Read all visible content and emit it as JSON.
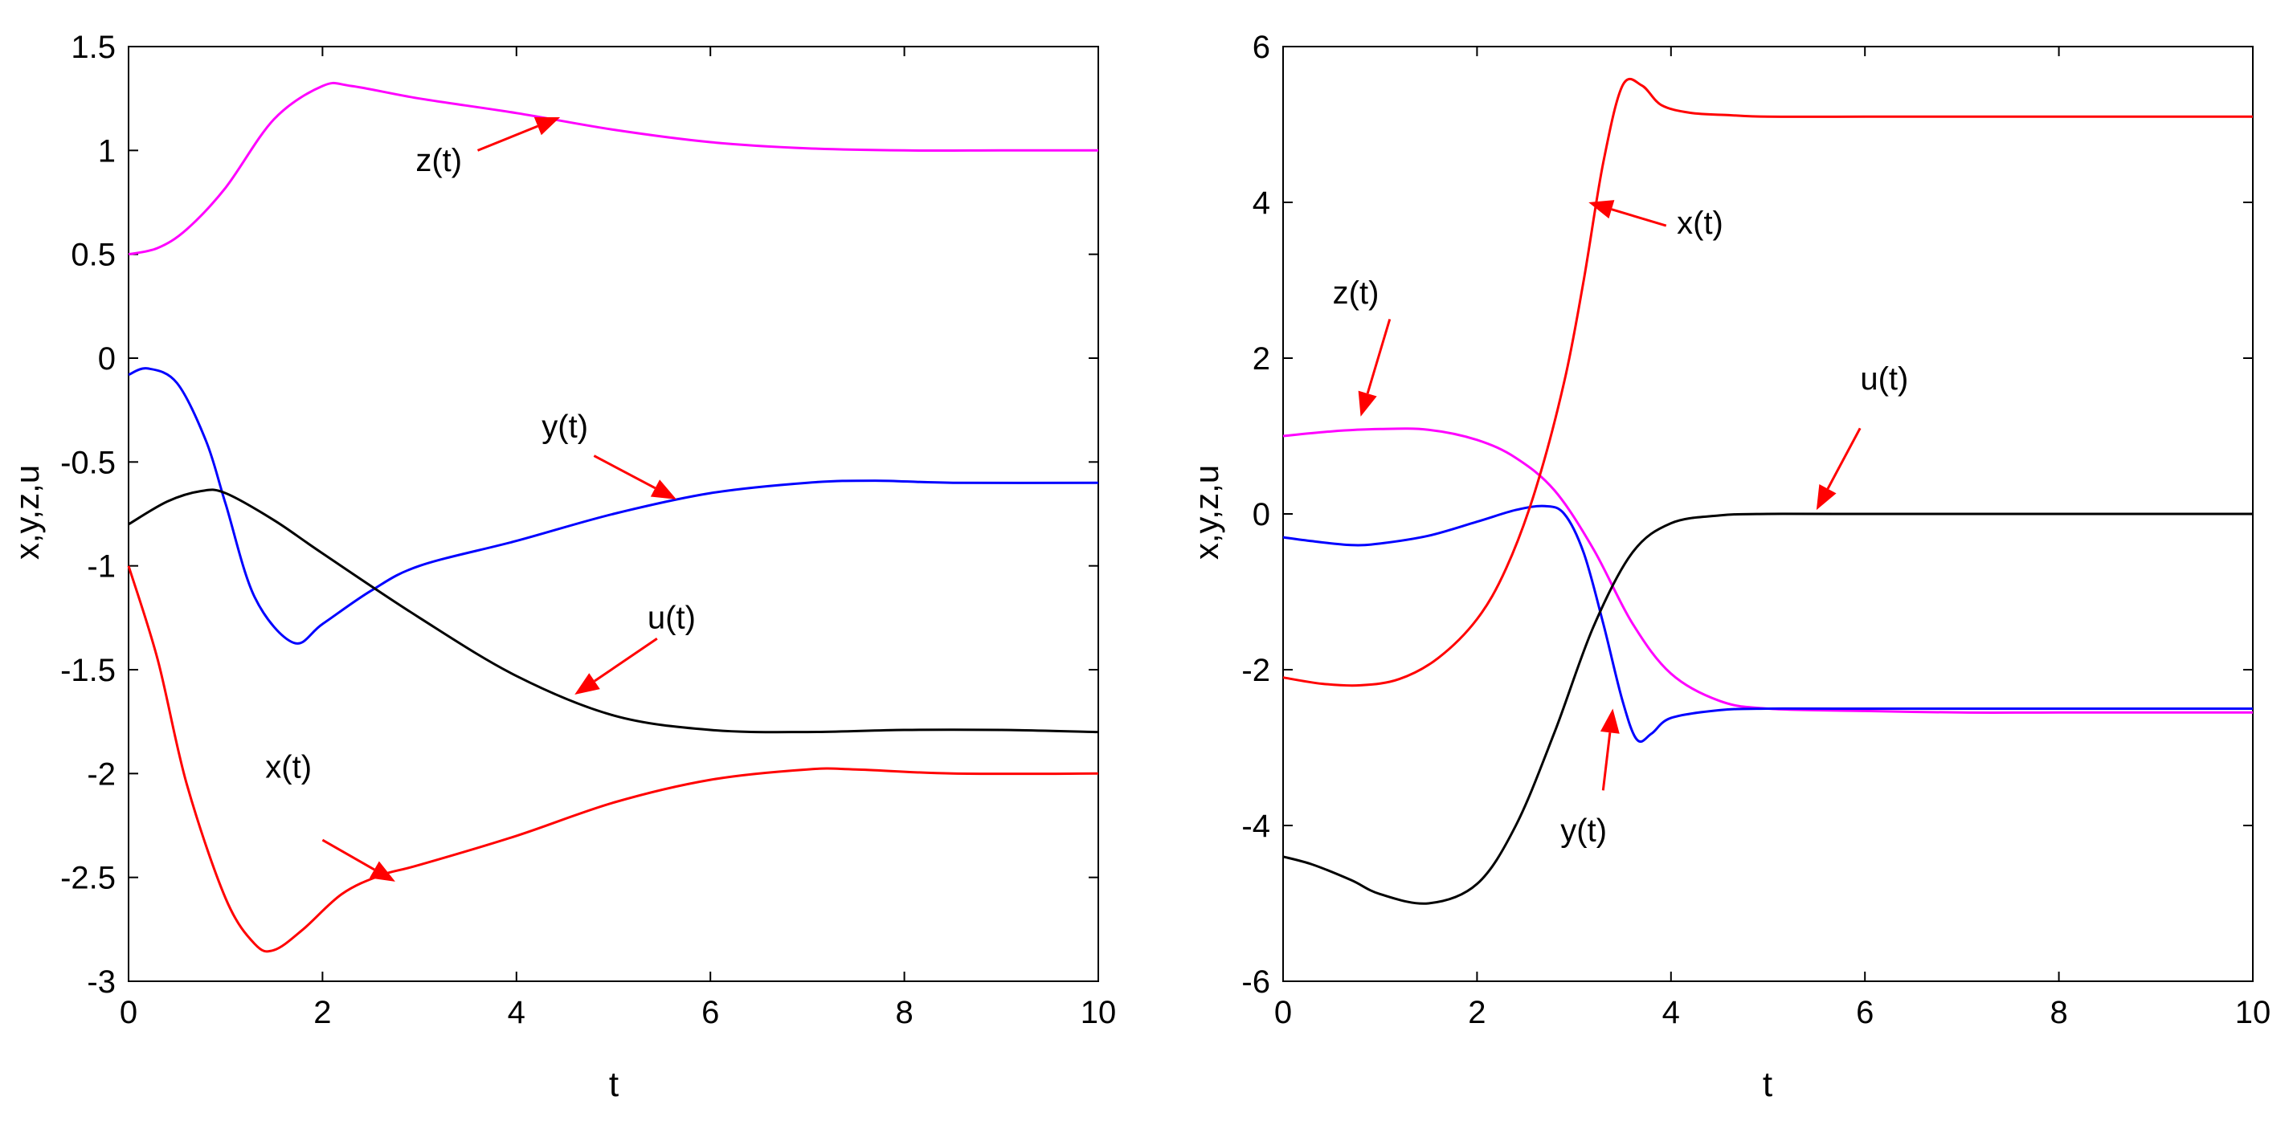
{
  "chart_data": [
    {
      "type": "line",
      "xlabel": "t",
      "ylabel": "x,y,z,u",
      "xlim": [
        0,
        10
      ],
      "ylim": [
        -3,
        1.5
      ],
      "xticks": [
        "0",
        "2",
        "4",
        "6",
        "8",
        "10"
      ],
      "yticks": [
        "-3",
        "-2.5",
        "-2",
        "-1.5",
        "-1",
        "-0.5",
        "0",
        "0.5",
        "1",
        "1.5"
      ],
      "series": [
        {
          "name": "z(t)",
          "color": "#ff00ff",
          "x": [
            0,
            0.3,
            0.6,
            1.0,
            1.5,
            2.0,
            2.3,
            3.0,
            4.0,
            5.0,
            6.0,
            7.0,
            8.0,
            9.0,
            10.0
          ],
          "y": [
            0.5,
            0.53,
            0.62,
            0.82,
            1.15,
            1.31,
            1.31,
            1.25,
            1.18,
            1.1,
            1.04,
            1.01,
            1.0,
            1.0,
            1.0
          ]
        },
        {
          "name": "y(t)",
          "color": "#0000ff",
          "x": [
            0,
            0.2,
            0.5,
            0.8,
            1.0,
            1.3,
            1.7,
            2.0,
            2.5,
            3.0,
            4.0,
            5.0,
            6.0,
            7.0,
            7.7,
            8.5,
            10.0
          ],
          "y": [
            -0.08,
            -0.05,
            -0.12,
            -0.4,
            -0.7,
            -1.15,
            -1.37,
            -1.28,
            -1.12,
            -1.0,
            -0.88,
            -0.75,
            -0.65,
            -0.6,
            -0.59,
            -0.6,
            -0.6
          ]
        },
        {
          "name": "u(t)",
          "color": "#000000",
          "x": [
            0,
            0.4,
            0.75,
            1.0,
            1.5,
            2.0,
            3.0,
            4.0,
            5.0,
            6.0,
            7.0,
            8.0,
            9.0,
            10.0
          ],
          "y": [
            -0.8,
            -0.69,
            -0.64,
            -0.65,
            -0.78,
            -0.94,
            -1.25,
            -1.53,
            -1.72,
            -1.79,
            -1.8,
            -1.79,
            -1.79,
            -1.8
          ]
        },
        {
          "name": "x(t)",
          "color": "#ff0000",
          "x": [
            0,
            0.3,
            0.6,
            1.0,
            1.3,
            1.5,
            1.8,
            2.2,
            2.6,
            3.0,
            4.0,
            5.0,
            6.0,
            7.0,
            7.5,
            8.5,
            10.0
          ],
          "y": [
            -1.0,
            -1.45,
            -2.05,
            -2.6,
            -2.82,
            -2.85,
            -2.75,
            -2.58,
            -2.49,
            -2.44,
            -2.3,
            -2.14,
            -2.03,
            -1.98,
            -1.98,
            -2.0,
            -2.0
          ]
        }
      ],
      "annotations": [
        {
          "text": "z(t)",
          "x": 3.2,
          "y": 0.9
        },
        {
          "text": "y(t)",
          "x": 4.5,
          "y": -0.38
        },
        {
          "text": "u(t)",
          "x": 5.6,
          "y": -1.3
        },
        {
          "text": "x(t)",
          "x": 1.65,
          "y": -2.02
        }
      ]
    },
    {
      "type": "line",
      "xlabel": "t",
      "ylabel": "x,y,z,u",
      "xlim": [
        0,
        10
      ],
      "ylim": [
        -6,
        6
      ],
      "xticks": [
        "0",
        "2",
        "4",
        "6",
        "8",
        "10"
      ],
      "yticks": [
        "-6",
        "-4",
        "-2",
        "0",
        "2",
        "4",
        "6"
      ],
      "series": [
        {
          "name": "z(t)",
          "color": "#ff00ff",
          "x": [
            0,
            0.5,
            1.0,
            1.5,
            2.0,
            2.4,
            2.8,
            3.2,
            3.6,
            4.0,
            4.5,
            5.0,
            6.0,
            7.0,
            8.0,
            10.0
          ],
          "y": [
            1.0,
            1.06,
            1.09,
            1.08,
            0.95,
            0.72,
            0.3,
            -0.45,
            -1.4,
            -2.05,
            -2.4,
            -2.5,
            -2.53,
            -2.55,
            -2.55,
            -2.55
          ]
        },
        {
          "name": "y(t)",
          "color": "#0000ff",
          "x": [
            0,
            0.3,
            0.7,
            1.0,
            1.5,
            2.0,
            2.4,
            2.7,
            2.9,
            3.1,
            3.3,
            3.5,
            3.65,
            3.8,
            4.0,
            4.5,
            5.0,
            6.0,
            10.0
          ],
          "y": [
            -0.3,
            -0.35,
            -0.4,
            -0.38,
            -0.28,
            -0.1,
            0.05,
            0.1,
            0.0,
            -0.5,
            -1.4,
            -2.4,
            -2.9,
            -2.82,
            -2.62,
            -2.52,
            -2.5,
            -2.5,
            -2.5
          ]
        },
        {
          "name": "u(t)",
          "color": "#000000",
          "x": [
            0,
            0.3,
            0.7,
            1.0,
            1.5,
            2.0,
            2.4,
            2.8,
            3.2,
            3.6,
            4.0,
            4.5,
            5.0,
            6.0,
            10.0
          ],
          "y": [
            -4.4,
            -4.5,
            -4.7,
            -4.88,
            -5.0,
            -4.75,
            -4.0,
            -2.8,
            -1.45,
            -0.5,
            -0.12,
            -0.02,
            0.0,
            0.0,
            0.0
          ]
        },
        {
          "name": "x(t)",
          "color": "#ff0000",
          "x": [
            0,
            0.4,
            0.8,
            1.2,
            1.6,
            2.0,
            2.3,
            2.6,
            2.9,
            3.1,
            3.3,
            3.5,
            3.7,
            3.9,
            4.2,
            4.6,
            5.0,
            6.0,
            10.0
          ],
          "y": [
            -2.1,
            -2.18,
            -2.2,
            -2.12,
            -1.85,
            -1.35,
            -0.7,
            0.3,
            1.7,
            3.0,
            4.5,
            5.5,
            5.5,
            5.25,
            5.15,
            5.12,
            5.1,
            5.1,
            5.1
          ]
        }
      ],
      "annotations": [
        {
          "text": "x(t)",
          "x": 4.3,
          "y": 3.6
        },
        {
          "text": "z(t)",
          "x": 0.75,
          "y": 2.7
        },
        {
          "text": "u(t)",
          "x": 6.2,
          "y": 1.6
        },
        {
          "text": "y(t)",
          "x": 3.1,
          "y": -4.2
        }
      ]
    }
  ]
}
